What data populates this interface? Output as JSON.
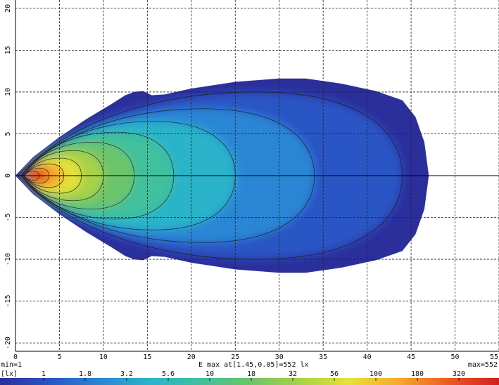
{
  "chart_data": {
    "type": "heatmap",
    "x_ticks": [
      0,
      5,
      10,
      15,
      20,
      25,
      30,
      35,
      40,
      45,
      50,
      55
    ],
    "y_ticks": [
      20,
      15,
      10,
      5,
      0,
      -5,
      -10,
      -15,
      -20
    ],
    "xlim": [
      0,
      55
    ],
    "ylim": [
      -21,
      21
    ],
    "grid": true,
    "grid_style": "dashed",
    "colorscale": "log",
    "colorbar": {
      "unit_label": "[lx]",
      "ticks": [
        "1",
        "1.8",
        "3.2",
        "5.6",
        "10",
        "18",
        "32",
        "56",
        "100",
        "180",
        "320"
      ],
      "colors": [
        "#2b2f9c",
        "#2a55c4",
        "#2a86d4",
        "#2bb3c9",
        "#3fc09c",
        "#6cc46a",
        "#a7d246",
        "#e5e23a",
        "#f6a92c",
        "#ec5a22",
        "#d21f1f"
      ]
    },
    "min_label": "min=1",
    "max_label": "max=552",
    "emax_label": "E max at[1.45,0.05]=552 lx",
    "emax_point": [
      1.45,
      0.05
    ],
    "emax_value": 552,
    "min_value": 1,
    "outer_boundary": [
      [
        0,
        0
      ],
      [
        2,
        2.2
      ],
      [
        5,
        4.6
      ],
      [
        8,
        6.7
      ],
      [
        11,
        8.6
      ],
      [
        12.5,
        9.6
      ],
      [
        13.5,
        10.0
      ],
      [
        14.5,
        10.1
      ],
      [
        15.5,
        9.6
      ],
      [
        17,
        9.7
      ],
      [
        20,
        10.4
      ],
      [
        25,
        11.2
      ],
      [
        30,
        11.6
      ],
      [
        33,
        11.6
      ],
      [
        37,
        11.0
      ],
      [
        41,
        10.1
      ],
      [
        44,
        9.0
      ],
      [
        45.5,
        7.0
      ],
      [
        46.5,
        4.0
      ],
      [
        47,
        0
      ],
      [
        46.5,
        -4.0
      ],
      [
        45.5,
        -7.0
      ],
      [
        44,
        -9.0
      ],
      [
        41,
        -10.1
      ],
      [
        37,
        -11.0
      ],
      [
        33,
        -11.6
      ],
      [
        30,
        -11.6
      ],
      [
        25,
        -11.2
      ],
      [
        20,
        -10.4
      ],
      [
        17,
        -9.7
      ],
      [
        15.5,
        -9.6
      ],
      [
        14.5,
        -10.1
      ],
      [
        13.5,
        -10.0
      ],
      [
        12.5,
        -9.6
      ],
      [
        11,
        -8.6
      ],
      [
        8,
        -6.7
      ],
      [
        5,
        -4.6
      ],
      [
        2,
        -2.2
      ]
    ],
    "contours": [
      {
        "level": 1.8,
        "x_max": 44,
        "half_width": 10.0,
        "nose_x": 0.3
      },
      {
        "level": 3.2,
        "x_max": 34,
        "half_width": 8.0,
        "nose_x": 0.6
      },
      {
        "level": 5.6,
        "x_max": 25,
        "half_width": 6.5,
        "nose_x": 0.6
      },
      {
        "level": 10,
        "x_max": 18,
        "half_width": 5.2,
        "nose_x": 0.7
      },
      {
        "level": 18,
        "x_max": 13.5,
        "half_width": 4.0,
        "nose_x": 0.8
      },
      {
        "level": 32,
        "x_max": 10,
        "half_width": 3.0,
        "nose_x": 0.9
      },
      {
        "level": 56,
        "x_max": 7.5,
        "half_width": 2.1,
        "nose_x": 1.0
      },
      {
        "level": 100,
        "x_max": 5.5,
        "half_width": 1.4,
        "nose_x": 1.0
      },
      {
        "level": 180,
        "x_max": 3.8,
        "half_width": 0.9,
        "nose_x": 1.0
      },
      {
        "level": 320,
        "x_max": 2.7,
        "half_width": 0.55,
        "nose_x": 1.0
      }
    ]
  }
}
